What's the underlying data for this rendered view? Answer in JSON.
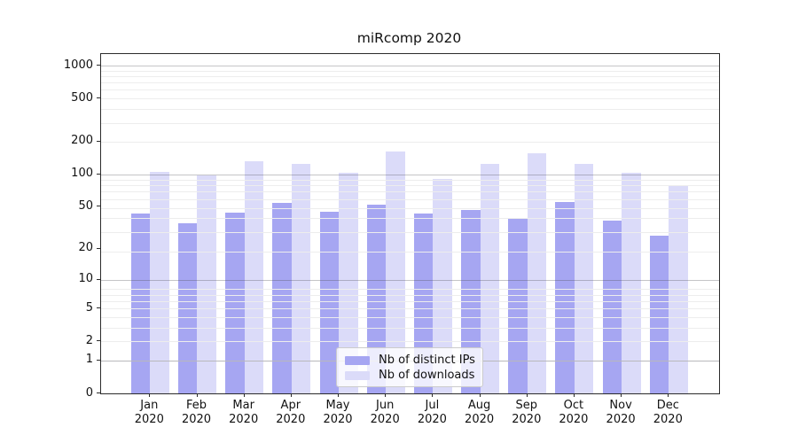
{
  "chart_data": {
    "type": "bar",
    "title": "miRcomp 2020",
    "categories": [
      "Jan 2020",
      "Feb 2020",
      "Mar 2020",
      "Apr 2020",
      "May 2020",
      "Jun 2020",
      "Jul 2020",
      "Aug 2020",
      "Sep 2020",
      "Oct 2020",
      "Nov 2020",
      "Dec 2020"
    ],
    "x_tick_month": [
      "Jan",
      "Feb",
      "Mar",
      "Apr",
      "May",
      "Jun",
      "Jul",
      "Aug",
      "Sep",
      "Oct",
      "Nov",
      "Dec"
    ],
    "x_tick_year": "2020",
    "series": [
      {
        "name": "Nb of distinct IPs",
        "color": "#a6a6f2",
        "values": [
          43,
          35,
          44,
          54,
          45,
          52,
          43,
          47,
          39,
          55,
          37,
          27
        ]
      },
      {
        "name": "Nb of downloads",
        "color": "#dbdbf9",
        "values": [
          105,
          97,
          131,
          124,
          103,
          164,
          91,
          124,
          157,
          126,
          103,
          80
        ]
      }
    ],
    "yscale": "log1p",
    "ylabel": "",
    "xlabel": "",
    "yticks": [
      0,
      1,
      2,
      5,
      10,
      20,
      50,
      100,
      200,
      500,
      1000
    ],
    "major_gridlines": [
      1,
      10,
      100,
      1000
    ],
    "minor_gridline_mantissas": [
      2,
      3,
      4,
      5,
      6,
      7,
      8,
      9
    ],
    "minor_gridline_decades": [
      1,
      10,
      100
    ],
    "ylim": [
      0,
      1280
    ],
    "grid": true,
    "legend_position": "lower center-left"
  }
}
